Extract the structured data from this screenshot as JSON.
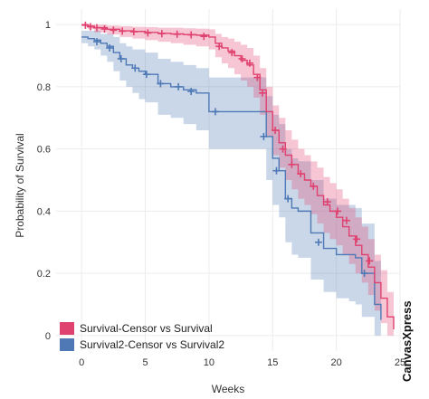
{
  "chart_data": {
    "type": "line",
    "subtype": "kaplan-meier",
    "title": "",
    "xlabel": "Weeks",
    "ylabel": "Probability of Survival",
    "xlim": [
      -2,
      25
    ],
    "ylim": [
      -0.05,
      1.05
    ],
    "xticks": [
      0,
      5,
      10,
      15,
      20,
      25
    ],
    "yticks": [
      0,
      0.2,
      0.4,
      0.6,
      0.8,
      1
    ],
    "xtick_labels": [
      "0",
      "5",
      "10",
      "15",
      "20",
      "25"
    ],
    "ytick_labels": [
      "0",
      "0.2",
      "0.4",
      "0.6",
      "0.8",
      "1"
    ],
    "grid": true,
    "legend_position": "bottom-left",
    "branding": "CanvasXpress",
    "series": [
      {
        "name": "Survival-Censor vs Survival",
        "color": "#e0426f",
        "x": [
          0,
          0.5,
          1,
          2,
          3,
          4,
          5,
          6,
          7,
          8,
          9,
          10,
          10.5,
          11,
          11.5,
          12,
          12.5,
          13,
          13.5,
          14,
          14.5,
          15,
          15.5,
          16,
          16.5,
          17,
          17.5,
          18,
          18.5,
          19,
          19.5,
          20,
          20.5,
          21,
          21.5,
          22,
          22.5,
          23,
          23.5,
          24,
          24.5
        ],
        "y": [
          1,
          0.995,
          0.99,
          0.985,
          0.98,
          0.978,
          0.975,
          0.972,
          0.97,
          0.968,
          0.966,
          0.96,
          0.94,
          0.925,
          0.915,
          0.9,
          0.885,
          0.87,
          0.84,
          0.79,
          0.72,
          0.66,
          0.62,
          0.58,
          0.55,
          0.52,
          0.5,
          0.48,
          0.45,
          0.42,
          0.4,
          0.38,
          0.35,
          0.32,
          0.29,
          0.26,
          0.22,
          0.17,
          0.12,
          0.06,
          0.02
        ],
        "lower": [
          1,
          0.985,
          0.975,
          0.968,
          0.96,
          0.955,
          0.95,
          0.945,
          0.94,
          0.935,
          0.93,
          0.92,
          0.895,
          0.875,
          0.86,
          0.84,
          0.82,
          0.8,
          0.765,
          0.71,
          0.64,
          0.58,
          0.54,
          0.5,
          0.47,
          0.44,
          0.42,
          0.39,
          0.36,
          0.33,
          0.31,
          0.29,
          0.26,
          0.23,
          0.2,
          0.17,
          0.13,
          0.08,
          0.04,
          0.0,
          0.0
        ],
        "upper": [
          1,
          1,
          1,
          0.997,
          0.995,
          0.993,
          0.992,
          0.99,
          0.99,
          0.988,
          0.987,
          0.985,
          0.97,
          0.96,
          0.955,
          0.945,
          0.935,
          0.925,
          0.9,
          0.86,
          0.8,
          0.74,
          0.7,
          0.66,
          0.63,
          0.6,
          0.58,
          0.56,
          0.54,
          0.51,
          0.49,
          0.47,
          0.44,
          0.41,
          0.38,
          0.35,
          0.31,
          0.26,
          0.21,
          0.14,
          0.08
        ],
        "censor_x": [
          0.3,
          0.7,
          1.2,
          1.8,
          2.5,
          3.2,
          4.1,
          5.2,
          6.3,
          7.5,
          8.6,
          9.6,
          10.8,
          11.8,
          12.6,
          13.2,
          13.8,
          14.2,
          15.2,
          15.8,
          16.5,
          17.2,
          18.2,
          19.3,
          20.1,
          20.8,
          21.6,
          22.6
        ],
        "censor_y": [
          0.998,
          0.993,
          0.99,
          0.986,
          0.982,
          0.979,
          0.977,
          0.973,
          0.971,
          0.969,
          0.967,
          0.962,
          0.93,
          0.91,
          0.89,
          0.876,
          0.83,
          0.78,
          0.66,
          0.6,
          0.55,
          0.52,
          0.48,
          0.43,
          0.4,
          0.37,
          0.31,
          0.24
        ]
      },
      {
        "name": "Survival2-Censor vs Survival2",
        "color": "#4e79b5",
        "x": [
          0,
          0.5,
          1,
          1.5,
          2,
          2.5,
          3,
          3.5,
          4,
          4.5,
          5,
          6,
          7,
          8,
          9,
          10,
          11,
          12,
          13,
          14,
          14.5,
          15,
          15.5,
          16,
          16.5,
          17,
          18,
          19,
          20,
          21,
          21.5,
          22,
          23,
          23.5
        ],
        "y": [
          0.96,
          0.955,
          0.95,
          0.94,
          0.93,
          0.91,
          0.89,
          0.87,
          0.86,
          0.85,
          0.84,
          0.81,
          0.8,
          0.79,
          0.78,
          0.72,
          0.72,
          0.72,
          0.72,
          0.72,
          0.64,
          0.57,
          0.53,
          0.44,
          0.41,
          0.4,
          0.33,
          0.28,
          0.26,
          0.26,
          0.25,
          0.2,
          0.1,
          0.05
        ],
        "lower": [
          0.94,
          0.93,
          0.92,
          0.9,
          0.88,
          0.85,
          0.82,
          0.8,
          0.78,
          0.76,
          0.75,
          0.71,
          0.7,
          0.68,
          0.66,
          0.6,
          0.6,
          0.6,
          0.6,
          0.6,
          0.5,
          0.42,
          0.38,
          0.3,
          0.26,
          0.25,
          0.18,
          0.14,
          0.12,
          0.11,
          0.1,
          0.06,
          0.0,
          0.0
        ],
        "upper": [
          0.98,
          0.98,
          0.98,
          0.97,
          0.97,
          0.96,
          0.94,
          0.93,
          0.92,
          0.92,
          0.91,
          0.89,
          0.88,
          0.87,
          0.86,
          0.83,
          0.83,
          0.83,
          0.83,
          0.83,
          0.77,
          0.71,
          0.68,
          0.6,
          0.57,
          0.56,
          0.5,
          0.44,
          0.42,
          0.42,
          0.41,
          0.36,
          0.24,
          0.16
        ],
        "censor_x": [
          1.2,
          2.2,
          3.1,
          4.2,
          5.1,
          6.2,
          7.6,
          8.6,
          10.5,
          14.3,
          15.3,
          16.2,
          18.6,
          22.2
        ],
        "censor_y": [
          0.945,
          0.925,
          0.89,
          0.86,
          0.84,
          0.81,
          0.8,
          0.785,
          0.72,
          0.64,
          0.53,
          0.44,
          0.3,
          0.2
        ]
      }
    ]
  }
}
